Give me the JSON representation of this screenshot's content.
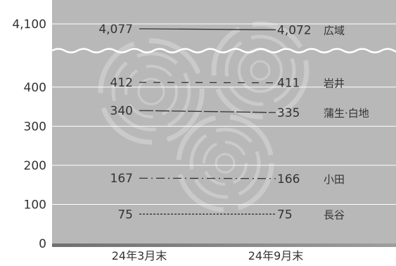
{
  "chart_data": {
    "type": "line",
    "title": "",
    "xlabel": "",
    "ylabel": "",
    "x": [
      "24年3月末",
      "24年9月末"
    ],
    "y_ticks": [
      "0",
      "100",
      "200",
      "300",
      "400",
      "4,100"
    ],
    "axis_break": true,
    "ylim": [
      0,
      4100
    ],
    "series": [
      {
        "name": "広域",
        "values": [
          4077,
          4072
        ],
        "labels": [
          "4,077",
          "4,072"
        ],
        "style": "solid"
      },
      {
        "name": "岩井",
        "values": [
          412,
          411
        ],
        "labels": [
          "412",
          "411"
        ],
        "style": "dashed"
      },
      {
        "name": "蒲生·白地",
        "values": [
          340,
          335
        ],
        "labels": [
          "340",
          "335"
        ],
        "style": "long-dash"
      },
      {
        "name": "小田",
        "values": [
          167,
          166
        ],
        "labels": [
          "167",
          "166"
        ],
        "style": "dash-dot"
      },
      {
        "name": "長谷",
        "values": [
          75,
          75
        ],
        "labels": [
          "75",
          "75"
        ],
        "style": "dotted"
      }
    ],
    "colors": {
      "plot_bg": "#b8b8b8",
      "line": "#333333",
      "grid": "#ffffff",
      "text": "#333333"
    }
  }
}
